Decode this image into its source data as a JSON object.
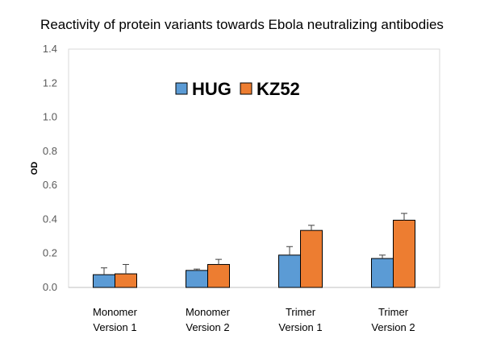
{
  "chart_data": {
    "type": "bar",
    "title": "Reactivity of protein variants towards Ebola neutralizing antibodies",
    "xlabel": "",
    "ylabel": "OD",
    "ylim": [
      0,
      1.4
    ],
    "yticks": [
      "0.0",
      "0.2",
      "0.4",
      "0.6",
      "0.8",
      "1.0",
      "1.2",
      "1.4"
    ],
    "categories": [
      [
        "Monomer",
        "Version 1"
      ],
      [
        "Monomer",
        "Version 2"
      ],
      [
        "Trimer",
        "Version 1"
      ],
      [
        "Trimer",
        "Version 2"
      ]
    ],
    "series": [
      {
        "name": "HUG",
        "color": "#5b9bd5",
        "values": [
          0.075,
          0.1,
          0.19,
          0.17
        ],
        "errors": [
          0.04,
          0.008,
          0.05,
          0.02
        ]
      },
      {
        "name": "KZ52",
        "color": "#ed7d31",
        "values": [
          0.08,
          0.135,
          0.335,
          0.395
        ],
        "errors": [
          0.055,
          0.03,
          0.03,
          0.04
        ]
      }
    ],
    "legend_position": "top-center",
    "grid": false
  }
}
